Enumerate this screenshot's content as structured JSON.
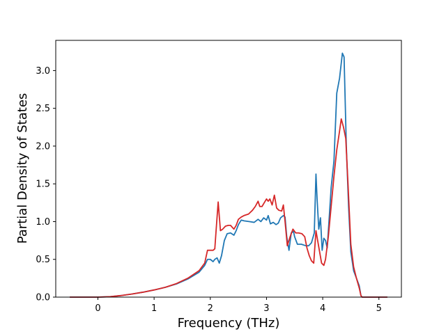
{
  "chart_data": {
    "type": "line",
    "xlabel": "Frequency (THz)",
    "ylabel": "Partial Density of States",
    "xlim": [
      -0.75,
      5.4
    ],
    "ylim": [
      0.0,
      3.4
    ],
    "xticks": [
      0,
      1,
      2,
      3,
      4,
      5
    ],
    "yticks": [
      0.0,
      0.5,
      1.0,
      1.5,
      2.0,
      2.5,
      3.0
    ],
    "xtick_labels": [
      "0",
      "1",
      "2",
      "3",
      "4",
      "5"
    ],
    "ytick_labels": [
      "0.0",
      "0.5",
      "1.0",
      "1.5",
      "2.0",
      "2.5",
      "3.0"
    ],
    "grid": false,
    "series": [
      {
        "color": "#1f77b4",
        "points": [
          [
            -0.5,
            0
          ],
          [
            0,
            0
          ],
          [
            0.2,
            0.005
          ],
          [
            0.4,
            0.02
          ],
          [
            0.6,
            0.04
          ],
          [
            0.8,
            0.065
          ],
          [
            1.0,
            0.095
          ],
          [
            1.2,
            0.13
          ],
          [
            1.4,
            0.175
          ],
          [
            1.6,
            0.24
          ],
          [
            1.8,
            0.33
          ],
          [
            1.9,
            0.42
          ],
          [
            1.95,
            0.5
          ],
          [
            2.0,
            0.5
          ],
          [
            2.05,
            0.47
          ],
          [
            2.08,
            0.5
          ],
          [
            2.12,
            0.52
          ],
          [
            2.16,
            0.45
          ],
          [
            2.2,
            0.55
          ],
          [
            2.25,
            0.75
          ],
          [
            2.3,
            0.84
          ],
          [
            2.36,
            0.85
          ],
          [
            2.42,
            0.82
          ],
          [
            2.46,
            0.88
          ],
          [
            2.5,
            0.96
          ],
          [
            2.55,
            1.02
          ],
          [
            2.6,
            1.01
          ],
          [
            2.7,
            1.0
          ],
          [
            2.78,
            0.99
          ],
          [
            2.85,
            1.03
          ],
          [
            2.9,
            1.0
          ],
          [
            2.95,
            1.05
          ],
          [
            3.0,
            1.02
          ],
          [
            3.03,
            1.08
          ],
          [
            3.07,
            0.97
          ],
          [
            3.12,
            0.99
          ],
          [
            3.17,
            0.96
          ],
          [
            3.21,
            0.98
          ],
          [
            3.25,
            1.05
          ],
          [
            3.3,
            1.08
          ],
          [
            3.33,
            1.06
          ],
          [
            3.36,
            0.8
          ],
          [
            3.4,
            0.62
          ],
          [
            3.44,
            0.85
          ],
          [
            3.48,
            0.87
          ],
          [
            3.5,
            0.8
          ],
          [
            3.55,
            0.7
          ],
          [
            3.62,
            0.7
          ],
          [
            3.7,
            0.68
          ],
          [
            3.75,
            0.68
          ],
          [
            3.8,
            0.72
          ],
          [
            3.85,
            0.85
          ],
          [
            3.88,
            1.63
          ],
          [
            3.9,
            1.3
          ],
          [
            3.93,
            0.9
          ],
          [
            3.96,
            1.05
          ],
          [
            3.99,
            0.62
          ],
          [
            4.02,
            0.78
          ],
          [
            4.05,
            0.75
          ],
          [
            4.08,
            0.65
          ],
          [
            4.12,
            1.1
          ],
          [
            4.15,
            1.45
          ],
          [
            4.2,
            1.8
          ],
          [
            4.25,
            2.7
          ],
          [
            4.3,
            2.9
          ],
          [
            4.35,
            3.23
          ],
          [
            4.38,
            3.18
          ],
          [
            4.42,
            2.0
          ],
          [
            4.46,
            1.2
          ],
          [
            4.5,
            0.6
          ],
          [
            4.55,
            0.35
          ],
          [
            4.6,
            0.25
          ],
          [
            4.65,
            0.15
          ],
          [
            4.68,
            0.02
          ],
          [
            4.7,
            0
          ],
          [
            5.15,
            0
          ]
        ]
      },
      {
        "color": "#d62728",
        "points": [
          [
            -0.5,
            0
          ],
          [
            0,
            0
          ],
          [
            0.2,
            0.005
          ],
          [
            0.4,
            0.02
          ],
          [
            0.6,
            0.04
          ],
          [
            0.8,
            0.065
          ],
          [
            1.0,
            0.095
          ],
          [
            1.2,
            0.13
          ],
          [
            1.4,
            0.18
          ],
          [
            1.6,
            0.25
          ],
          [
            1.8,
            0.35
          ],
          [
            1.9,
            0.45
          ],
          [
            1.95,
            0.62
          ],
          [
            2.0,
            0.62
          ],
          [
            2.05,
            0.62
          ],
          [
            2.08,
            0.64
          ],
          [
            2.1,
            0.85
          ],
          [
            2.14,
            1.26
          ],
          [
            2.18,
            0.88
          ],
          [
            2.22,
            0.9
          ],
          [
            2.27,
            0.94
          ],
          [
            2.32,
            0.95
          ],
          [
            2.36,
            0.95
          ],
          [
            2.42,
            0.9
          ],
          [
            2.46,
            0.95
          ],
          [
            2.5,
            1.03
          ],
          [
            2.55,
            1.06
          ],
          [
            2.6,
            1.08
          ],
          [
            2.68,
            1.1
          ],
          [
            2.75,
            1.15
          ],
          [
            2.8,
            1.2
          ],
          [
            2.85,
            1.27
          ],
          [
            2.88,
            1.2
          ],
          [
            2.92,
            1.2
          ],
          [
            2.96,
            1.25
          ],
          [
            3.0,
            1.3
          ],
          [
            3.03,
            1.27
          ],
          [
            3.06,
            1.3
          ],
          [
            3.1,
            1.22
          ],
          [
            3.14,
            1.35
          ],
          [
            3.18,
            1.18
          ],
          [
            3.22,
            1.15
          ],
          [
            3.27,
            1.14
          ],
          [
            3.3,
            1.22
          ],
          [
            3.33,
            1.0
          ],
          [
            3.37,
            0.68
          ],
          [
            3.42,
            0.8
          ],
          [
            3.47,
            0.9
          ],
          [
            3.52,
            0.85
          ],
          [
            3.57,
            0.85
          ],
          [
            3.63,
            0.84
          ],
          [
            3.68,
            0.8
          ],
          [
            3.72,
            0.65
          ],
          [
            3.76,
            0.55
          ],
          [
            3.8,
            0.48
          ],
          [
            3.84,
            0.45
          ],
          [
            3.88,
            0.88
          ],
          [
            3.91,
            0.75
          ],
          [
            3.94,
            0.62
          ],
          [
            3.98,
            0.45
          ],
          [
            4.02,
            0.42
          ],
          [
            4.05,
            0.5
          ],
          [
            4.1,
            0.8
          ],
          [
            4.15,
            1.2
          ],
          [
            4.2,
            1.6
          ],
          [
            4.25,
            1.95
          ],
          [
            4.3,
            2.2
          ],
          [
            4.33,
            2.36
          ],
          [
            4.37,
            2.25
          ],
          [
            4.41,
            2.1
          ],
          [
            4.45,
            1.5
          ],
          [
            4.5,
            0.7
          ],
          [
            4.55,
            0.4
          ],
          [
            4.6,
            0.25
          ],
          [
            4.65,
            0.12
          ],
          [
            4.68,
            0.02
          ],
          [
            4.7,
            0
          ],
          [
            5.15,
            0
          ]
        ]
      }
    ]
  }
}
